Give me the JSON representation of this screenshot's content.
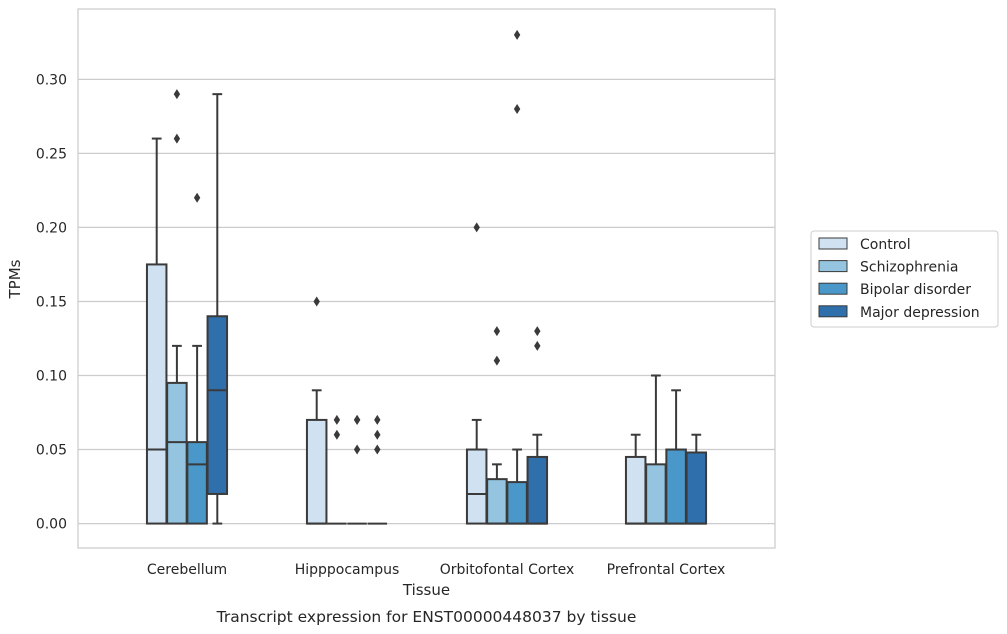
{
  "chart_data": {
    "type": "box",
    "title": "",
    "caption": "Transcript expression for ENST00000448037 by tissue",
    "xlabel": "Tissue",
    "ylabel": "TPMs",
    "ylim": [
      -0.0165,
      0.3475
    ],
    "yticks": [
      0.0,
      0.05,
      0.1,
      0.15,
      0.2,
      0.25,
      0.3
    ],
    "ytick_labels": [
      "0.00",
      "0.05",
      "0.10",
      "0.15",
      "0.20",
      "0.25",
      "0.30"
    ],
    "grid": true,
    "legend_position": "right",
    "categories": [
      "Cerebellum",
      "Hipppocampus",
      "Orbitofontal Cortex",
      "Prefrontal Cortex"
    ],
    "series": [
      {
        "name": "Control",
        "color": "#d0e1f2",
        "boxes": [
          {
            "whislo": 0.0,
            "q1": 0.0,
            "med": 0.05,
            "q3": 0.175,
            "whishi": 0.26,
            "fliers": []
          },
          {
            "whislo": 0.0,
            "q1": 0.0,
            "med": 0.0,
            "q3": 0.07,
            "whishi": 0.09,
            "fliers": [
              0.15
            ]
          },
          {
            "whislo": 0.0,
            "q1": 0.0,
            "med": 0.02,
            "q3": 0.05,
            "whishi": 0.07,
            "fliers": [
              0.2
            ]
          },
          {
            "whislo": 0.0,
            "q1": 0.0,
            "med": 0.0,
            "q3": 0.045,
            "whishi": 0.06,
            "fliers": []
          }
        ]
      },
      {
        "name": "Schizophrenia",
        "color": "#94c4df",
        "boxes": [
          {
            "whislo": 0.0,
            "q1": 0.0,
            "med": 0.055,
            "q3": 0.095,
            "whishi": 0.12,
            "fliers": [
              0.29,
              0.26
            ]
          },
          {
            "whislo": 0.0,
            "q1": 0.0,
            "med": 0.0,
            "q3": 0.0,
            "whishi": 0.0,
            "fliers": [
              0.07,
              0.06
            ]
          },
          {
            "whislo": 0.0,
            "q1": 0.0,
            "med": 0.0,
            "q3": 0.03,
            "whishi": 0.04,
            "fliers": [
              0.13,
              0.11
            ]
          },
          {
            "whislo": 0.0,
            "q1": 0.0,
            "med": 0.0,
            "q3": 0.04,
            "whishi": 0.1,
            "fliers": []
          }
        ]
      },
      {
        "name": "Bipolar disorder",
        "color": "#4a98c9",
        "boxes": [
          {
            "whislo": 0.0,
            "q1": 0.0,
            "med": 0.04,
            "q3": 0.055,
            "whishi": 0.12,
            "fliers": [
              0.22
            ]
          },
          {
            "whislo": 0.0,
            "q1": 0.0,
            "med": 0.0,
            "q3": 0.0,
            "whishi": 0.0,
            "fliers": [
              0.07,
              0.07,
              0.05
            ]
          },
          {
            "whislo": 0.0,
            "q1": 0.0,
            "med": 0.0,
            "q3": 0.028,
            "whishi": 0.05,
            "fliers": [
              0.33,
              0.28
            ]
          },
          {
            "whislo": 0.0,
            "q1": 0.0,
            "med": 0.0,
            "q3": 0.05,
            "whishi": 0.09,
            "fliers": []
          }
        ]
      },
      {
        "name": "Major depression",
        "color": "#2e6fac",
        "boxes": [
          {
            "whislo": 0.0,
            "q1": 0.02,
            "med": 0.09,
            "q3": 0.14,
            "whishi": 0.29,
            "fliers": []
          },
          {
            "whislo": 0.0,
            "q1": 0.0,
            "med": 0.0,
            "q3": 0.0,
            "whishi": 0.0,
            "fliers": [
              0.07,
              0.06,
              0.05
            ]
          },
          {
            "whislo": 0.0,
            "q1": 0.0,
            "med": 0.0,
            "q3": 0.045,
            "whishi": 0.06,
            "fliers": [
              0.13,
              0.12
            ]
          },
          {
            "whislo": 0.0,
            "q1": 0.0,
            "med": 0.0,
            "q3": 0.048,
            "whishi": 0.06,
            "fliers": []
          }
        ]
      }
    ]
  }
}
